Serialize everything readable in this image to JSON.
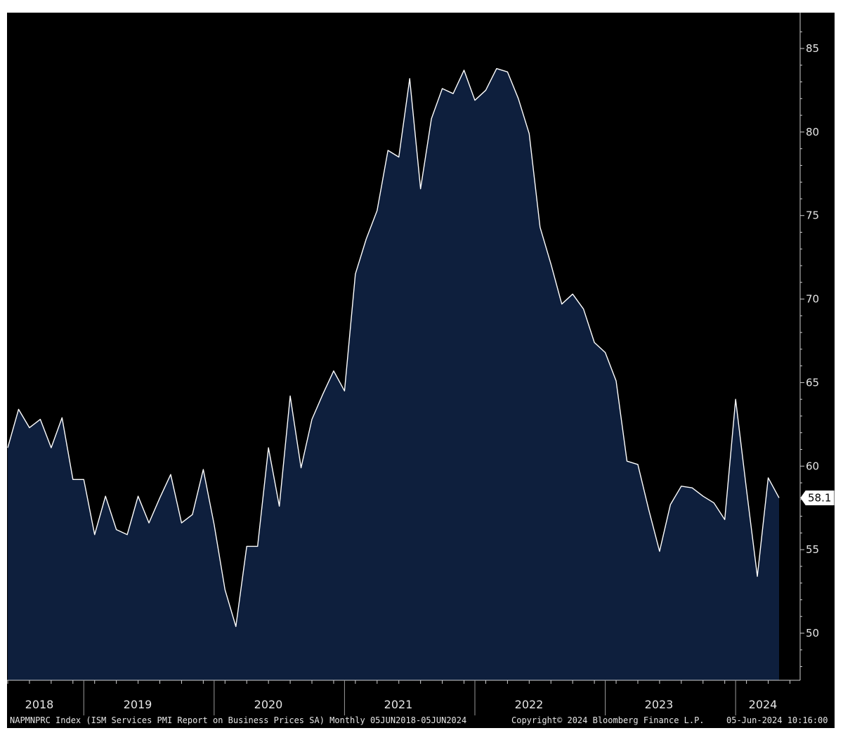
{
  "chart_data": {
    "type": "area",
    "x_start": "2018-06",
    "x_end": "2024-05",
    "frequency": "monthly",
    "last_value": "58.1",
    "ylim": [
      47,
      87
    ],
    "y_ticks": [
      50,
      55,
      60,
      65,
      70,
      75,
      80,
      85
    ],
    "x_ticks": [
      "2018",
      "2019",
      "2020",
      "2021",
      "2022",
      "2023",
      "2024"
    ],
    "series": [
      {
        "values": [
          61.1,
          63.4,
          62.3,
          62.8,
          61.1,
          62.9,
          59.2,
          59.2,
          55.9,
          58.2,
          56.2,
          55.9,
          58.2,
          56.6,
          58.1,
          59.5,
          56.6,
          57.1,
          59.8,
          56.5,
          52.6,
          50.4,
          55.2,
          55.2,
          61.1,
          57.6,
          64.2,
          59.9,
          62.8,
          64.3,
          65.7,
          64.5,
          71.5,
          73.6,
          75.3,
          78.9,
          78.5,
          83.2,
          76.6,
          80.8,
          82.6,
          82.3,
          83.7,
          81.9,
          82.5,
          83.8,
          83.6,
          82.0,
          79.9,
          74.3,
          72.1,
          69.7,
          70.3,
          69.4,
          67.4,
          66.8,
          65.1,
          60.3,
          60.1,
          57.4,
          54.9,
          57.7,
          58.8,
          58.7,
          58.2,
          57.8,
          56.8,
          64.0,
          58.6,
          53.4,
          59.3,
          58.1
        ]
      }
    ]
  },
  "footer": {
    "series_info": "NAPMNPRC Index (ISM Services PMI Report on Business Prices SA)  Monthly 05JUN2018-05JUN2024",
    "copyright": "Copyright© 2024 Bloomberg Finance L.P.",
    "timestamp": "05-Jun-2024 10:16:00"
  },
  "colors": {
    "background": "#000000",
    "area_fill": "#0e1f3d",
    "line": "#ffffff",
    "axis_text": "#e6e6e6"
  }
}
